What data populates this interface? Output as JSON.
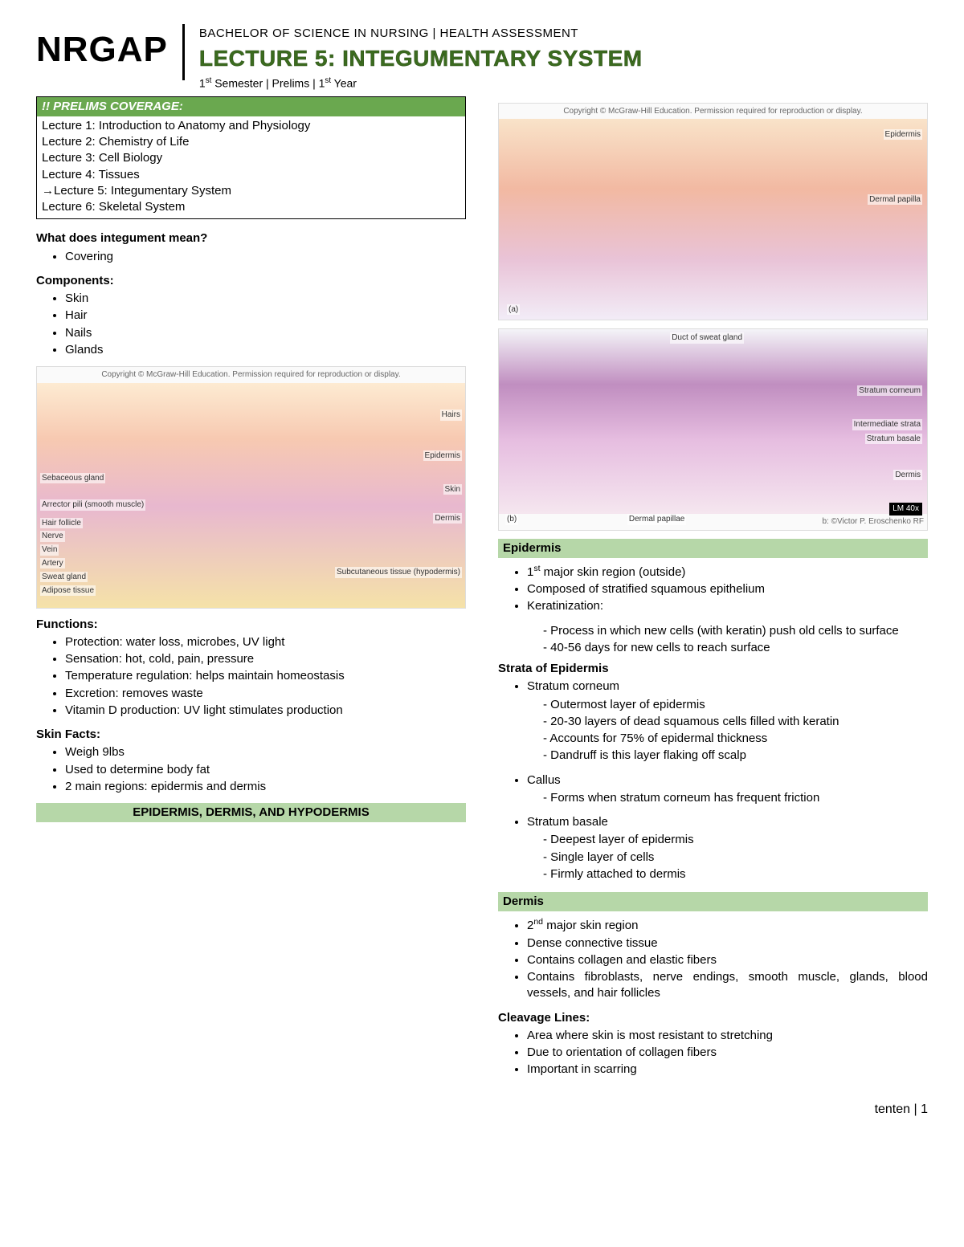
{
  "header": {
    "brand": "NRGAP",
    "program": "BACHELOR OF SCIENCE IN NURSING  |  HEALTH ASSESSMENT",
    "lecture_title": "LECTURE 5: INTEGUMENTARY SYSTEM",
    "sem_line_html": "1<sup>st</sup> Semester | Prelims | 1<sup>st</sup> Year"
  },
  "coverage": {
    "header": "!! PRELIMS COVERAGE:",
    "items": [
      "Lecture 1: Introduction to Anatomy and Physiology",
      "Lecture 2: Chemistry of Life",
      "Lecture 3: Cell Biology",
      "Lecture 4: Tissues",
      "→Lecture 5: Integumentary System",
      "Lecture 6: Skeletal System"
    ]
  },
  "left": {
    "q1": "What does integument mean?",
    "q1_items": [
      "Covering"
    ],
    "components_h": "Components:",
    "components": [
      "Skin",
      "Hair",
      "Nails",
      "Glands"
    ],
    "diagram1": {
      "caption": "Copyright © McGraw-Hill Education. Permission required for reproduction or display.",
      "labels_left": [
        "Sebaceous gland",
        "Arrector pili (smooth muscle)",
        "Hair follicle",
        "Nerve",
        "Vein",
        "Artery",
        "Sweat gland",
        "Adipose tissue"
      ],
      "labels_right": [
        "Hairs",
        "Epidermis",
        "Skin",
        "Dermis",
        "Subcutaneous tissue (hypodermis)"
      ]
    },
    "functions_h": "Functions:",
    "functions": [
      "Protection: water loss, microbes, UV light",
      "Sensation: hot, cold, pain, pressure",
      "Temperature regulation: helps maintain homeostasis",
      "Excretion: removes waste",
      "Vitamin D production: UV light stimulates production"
    ],
    "skinfacts_h": "Skin Facts:",
    "skinfacts": [
      "Weigh 9lbs",
      "Used to determine body fat",
      "2 main regions: epidermis and dermis"
    ],
    "banner": "EPIDERMIS, DERMIS, AND HYPODERMIS"
  },
  "right": {
    "diagram2": {
      "caption": "Copyright © McGraw-Hill Education. Permission required for reproduction or display.",
      "labels": [
        "Epidermis",
        "Dermal papilla",
        "(a)"
      ]
    },
    "diagram3": {
      "labels": [
        "Duct of sweat gland",
        "Stratum corneum",
        "Intermediate strata",
        "Stratum basale",
        "Dermis",
        "Dermal papillae",
        "LM 40x"
      ],
      "credit": "b: ©Victor P. Eroschenko RF",
      "marker": "(b)"
    },
    "epidermis_banner": "Epidermis",
    "epidermis_items_html": [
      "1<sup>st</sup> major skin region (outside)",
      "Composed of stratified squamous epithelium",
      "Keratinization:"
    ],
    "keratinization_sub": [
      "Process in which new cells (with keratin) push old cells to surface",
      "40-56 days for new cells to reach surface"
    ],
    "strata_h": "Strata of Epidermis",
    "stratum_corneum": "Stratum corneum",
    "stratum_corneum_sub": [
      "Outermost layer of epidermis",
      "20-30 layers of dead squamous cells filled with keratin",
      "Accounts for 75% of epidermal thickness",
      "Dandruff is this layer flaking off scalp"
    ],
    "callus": "Callus",
    "callus_sub": [
      "Forms when stratum corneum has frequent friction"
    ],
    "stratum_basale": "Stratum basale",
    "stratum_basale_sub": [
      "Deepest layer of epidermis",
      "Single layer of cells",
      "Firmly attached to dermis"
    ],
    "dermis_banner": "Dermis",
    "dermis_items_html": [
      "2<sup>nd</sup> major skin region",
      "Dense connective tissue",
      "Contains collagen and elastic fibers",
      "Contains fibroblasts, nerve endings, smooth muscle, glands, blood vessels, and hair follicles"
    ],
    "cleavage_h": "Cleavage Lines:",
    "cleavage_items": [
      "Area where skin is most resistant to stretching",
      "Due to orientation of collagen fibers",
      "Important in scarring"
    ]
  },
  "footer": "tenten | 1",
  "colors": {
    "title_green": "#3b6b1f",
    "header_green": "#6aa84f",
    "banner_green": "#b6d7a8"
  }
}
